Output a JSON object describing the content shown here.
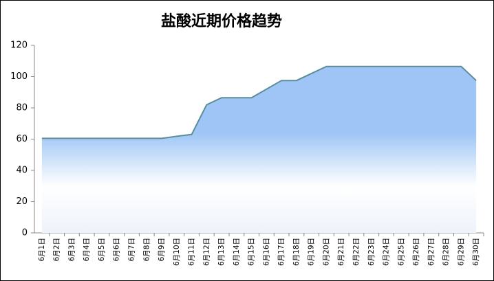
{
  "chart_data": {
    "type": "area",
    "title": "盐酸近期价格趋势",
    "categories": [
      "6月1日",
      "6月2日",
      "6月3日",
      "6月4日",
      "6月5日",
      "6月6日",
      "6月7日",
      "6月8日",
      "6月9日",
      "6月10日",
      "6月11日",
      "6月12日",
      "6月13日",
      "6月14日",
      "6月15日",
      "6月16日",
      "6月17日",
      "6月18日",
      "6月19日",
      "6月20日",
      "6月21日",
      "6月22日",
      "6月23日",
      "6月24日",
      "6月25日",
      "6月26日",
      "6月27日",
      "6月28日",
      "6月29日",
      "6月30日"
    ],
    "values": [
      60.5,
      60.5,
      60.5,
      60.5,
      60.5,
      60.5,
      60.5,
      60.5,
      60.5,
      61.8,
      63,
      82,
      86.5,
      86.5,
      86.5,
      92,
      97.5,
      97.5,
      102,
      106.5,
      106.5,
      106.5,
      106.5,
      106.5,
      106.5,
      106.5,
      106.5,
      106.5,
      106.5,
      97.5
    ],
    "color": "#5b8d98",
    "fill_color": "#9ec5f5",
    "ylim": [
      0,
      120
    ],
    "yticks": [
      0,
      20,
      40,
      60,
      80,
      100,
      120
    ]
  }
}
